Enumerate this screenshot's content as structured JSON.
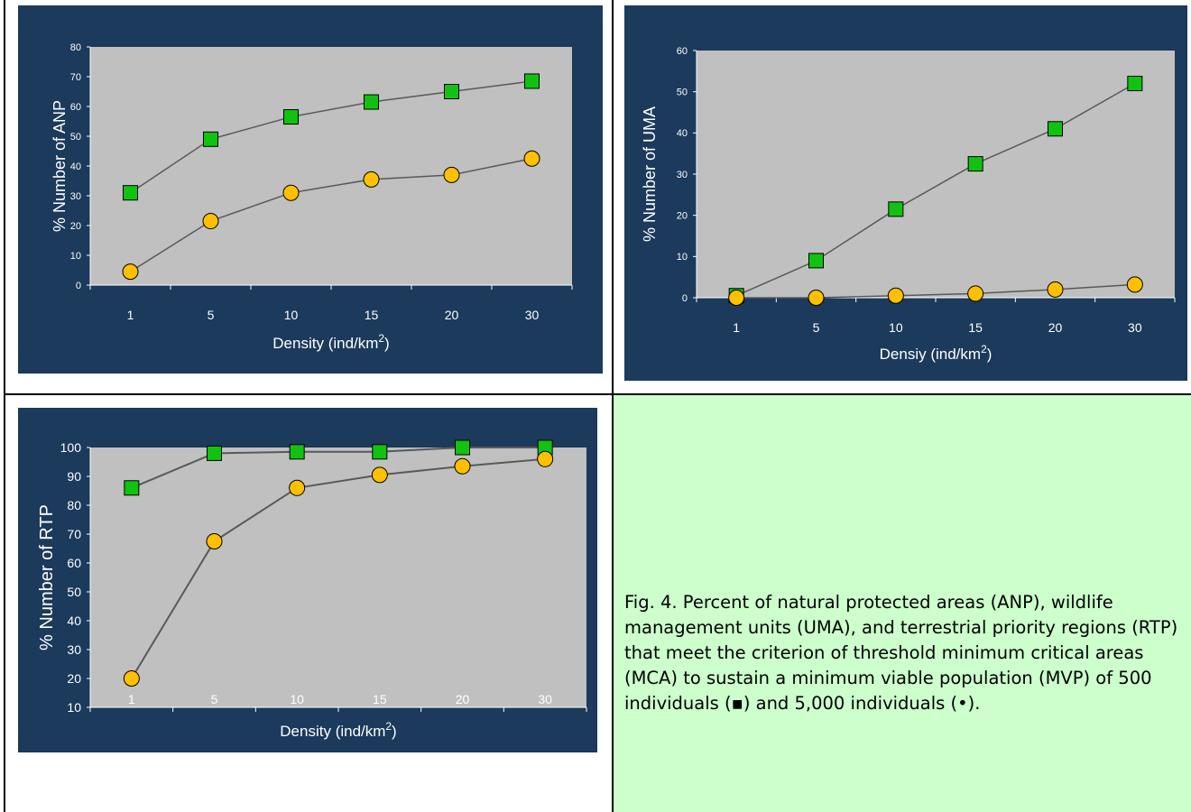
{
  "colors": {
    "panel_bg": "#1b3a5c",
    "plot_bg": "#c0c0c0",
    "square_marker": "#11c211",
    "circle_marker": "#ffc000",
    "line": "#595959",
    "axis_text": "#ffffff",
    "caption_bg": "#ccffcc"
  },
  "chart_data": [
    {
      "type": "line",
      "ylabel": "% Number of ANP",
      "xlabel": "Density (ind/km",
      "xlabel_sup": "2",
      "xlabel_end": ")",
      "categories": [
        "1",
        "5",
        "10",
        "15",
        "20",
        "30"
      ],
      "yticks": [
        "0",
        "10",
        "20",
        "30",
        "40",
        "50",
        "60",
        "70",
        "80"
      ],
      "ylim": [
        0,
        80
      ],
      "series": [
        {
          "marker": "square",
          "values": [
            31,
            49,
            56.5,
            61.5,
            65,
            68.5
          ]
        },
        {
          "marker": "circle",
          "values": [
            4.5,
            21.5,
            31,
            35.5,
            37,
            42.5
          ]
        }
      ]
    },
    {
      "type": "line",
      "ylabel": "% Number of UMA",
      "xlabel": "Densiy (ind/km",
      "xlabel_sup": "2",
      "xlabel_end": ")",
      "categories": [
        "1",
        "5",
        "10",
        "15",
        "20",
        "30"
      ],
      "yticks": [
        "0",
        "10",
        "20",
        "30",
        "40",
        "50",
        "60"
      ],
      "ylim": [
        0,
        60
      ],
      "series": [
        {
          "marker": "square",
          "values": [
            0.5,
            9,
            21.5,
            32.5,
            41,
            52
          ]
        },
        {
          "marker": "circle",
          "values": [
            0,
            0,
            0.5,
            1,
            2,
            3.2
          ]
        }
      ]
    },
    {
      "type": "line",
      "ylabel": "% Number of RTP",
      "xlabel": "Density (ind/km",
      "xlabel_sup": "2",
      "xlabel_end": ")",
      "categories": [
        "1",
        "5",
        "10",
        "15",
        "20",
        "30"
      ],
      "yticks": [
        "10",
        "20",
        "30",
        "40",
        "50",
        "60",
        "70",
        "80",
        "90",
        "100"
      ],
      "ylim": [
        10,
        100
      ],
      "series": [
        {
          "marker": "square",
          "values": [
            86,
            98,
            98.5,
            98.5,
            100,
            100
          ]
        },
        {
          "marker": "circle",
          "values": [
            20,
            67.5,
            86,
            90.5,
            93.5,
            96
          ]
        }
      ]
    }
  ],
  "caption": {
    "text": "Fig. 4. Percent of natural protected areas (ANP), wildlife management units (UMA), and terrestrial priority regions (RTP) that meet the criterion of threshold minimum critical areas (MCA) to sustain a minimum viable population (MVP) of 500 individuals (▪) and 5,000 individuals (•)."
  }
}
